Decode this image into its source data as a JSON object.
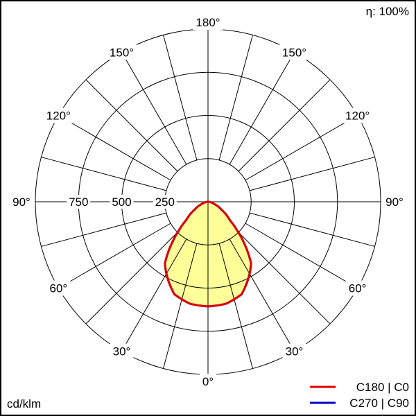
{
  "chart_data": {
    "type": "polar",
    "efficiency_label": "η: 100%",
    "unit_label": "cd/klm",
    "radial_ticks": [
      250,
      500,
      750
    ],
    "radial_max": 1000,
    "angle_labels": [
      "0°",
      "30°",
      "60°",
      "90°",
      "120°",
      "150°",
      "180°"
    ],
    "angle_label_values": [
      0,
      30,
      60,
      90,
      120,
      150,
      180
    ],
    "grid_step_deg": 15,
    "gamma": [
      0,
      10,
      20,
      30,
      35,
      40,
      45,
      50,
      60,
      70,
      80,
      90
    ],
    "series": [
      {
        "name": "C270 | C90",
        "color": "#0000cc",
        "values": [
          606,
          600,
          570,
          482,
          435,
          340,
          245,
          165,
          88,
          40,
          15,
          0
        ]
      },
      {
        "name": "C180 | C0",
        "color": "#e00000",
        "values": [
          606,
          600,
          570,
          482,
          435,
          340,
          245,
          165,
          88,
          40,
          15,
          0
        ]
      }
    ],
    "fill_color": "#ffff99",
    "legend_position": "bottom-right"
  }
}
